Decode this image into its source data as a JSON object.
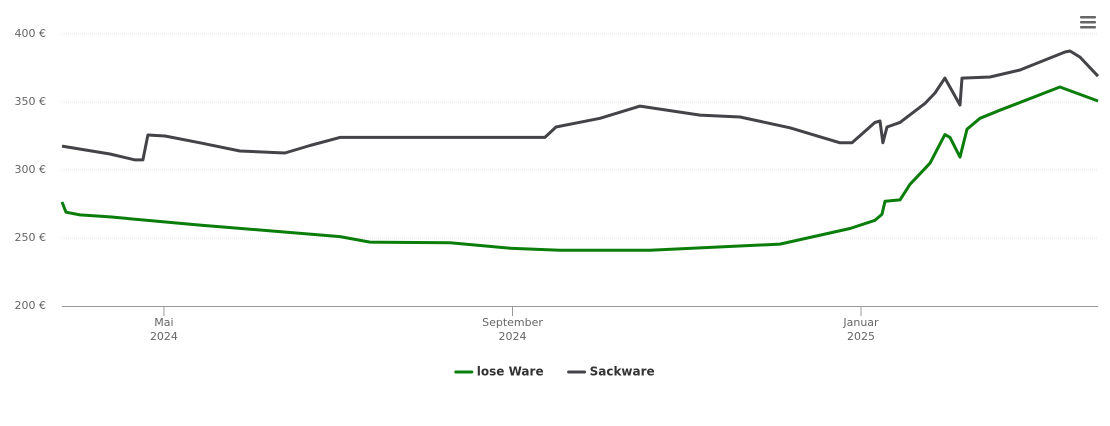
{
  "chart_data": {
    "type": "line",
    "ylim": [
      200,
      400
    ],
    "yticks": [
      {
        "value": 200,
        "label": "200 €"
      },
      {
        "value": 250,
        "label": "250 €"
      },
      {
        "value": 300,
        "label": "300 €"
      },
      {
        "value": 350,
        "label": "350 €"
      },
      {
        "value": 400,
        "label": "400 €"
      }
    ],
    "xlim": [
      2024.2358,
      2025.2267
    ],
    "xticks": [
      {
        "value": 2024.3333,
        "label": [
          "Mai",
          "2024"
        ]
      },
      {
        "value": 2024.6667,
        "label": [
          "September",
          "2024"
        ]
      },
      {
        "value": 2025.0,
        "label": [
          "Januar",
          "2025"
        ]
      }
    ],
    "grid": true,
    "legend": "bottom",
    "series": [
      {
        "name": "lose Ware",
        "color": "#0a7d0a",
        "x": [
          2024.2358,
          2024.2396,
          2024.253,
          2024.2817,
          2024.3678,
          2024.5017,
          2024.5304,
          2024.6069,
          2024.6643,
          2024.7121,
          2024.7982,
          2024.9225,
          2024.9895,
          2025.0134,
          2025.0201,
          2025.023,
          2025.0373,
          2025.0469,
          2025.066,
          2025.0803,
          2025.0851,
          2025.0947,
          2025.1014,
          2025.1138,
          2025.1329,
          2025.1903,
          2025.2267
        ],
        "values": [
          276.5,
          269,
          267,
          265.5,
          259.5,
          251,
          247,
          246.5,
          242.5,
          241,
          241,
          245.5,
          257,
          263,
          267.5,
          277,
          278,
          289.5,
          305,
          326,
          324,
          309.5,
          330,
          338,
          344,
          361,
          350.7
        ]
      },
      {
        "name": "Sackware",
        "color": "#434348",
        "x": [
          2024.2358,
          2024.2817,
          2024.3056,
          2024.3132,
          2024.318,
          2024.3343,
          2024.3678,
          2024.406,
          2024.449,
          2024.473,
          2024.5017,
          2024.5591,
          2024.6977,
          2024.7083,
          2024.7504,
          2024.7886,
          2024.846,
          2024.8843,
          2024.9321,
          2024.9799,
          2024.9914,
          2025.0134,
          2025.0182,
          2025.021,
          2025.0249,
          2025.0373,
          2025.0612,
          2025.0708,
          2025.0803,
          2025.0947,
          2025.0966,
          2025.1234,
          2025.1521,
          2025.1951,
          2025.1999,
          2025.2095,
          2025.2267
        ],
        "values": [
          317.6,
          311.8,
          307.4,
          307.4,
          325.7,
          325,
          320,
          314,
          312.5,
          318,
          324,
          324,
          324,
          331.6,
          338,
          347,
          340.4,
          339,
          331,
          320,
          320,
          335,
          336,
          320,
          331.6,
          335,
          349,
          356.6,
          367.6,
          347.8,
          367.6,
          368.4,
          373.5,
          386.8,
          387.5,
          383,
          369
        ]
      }
    ]
  }
}
